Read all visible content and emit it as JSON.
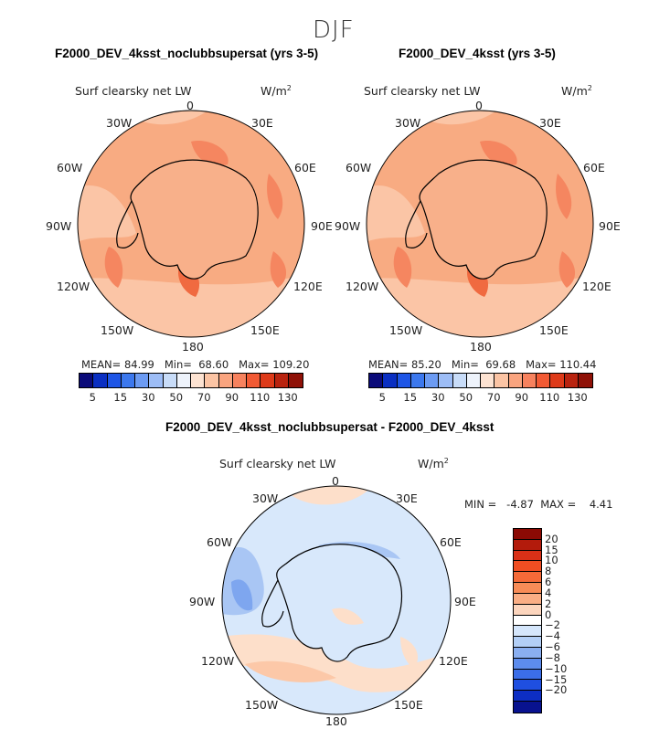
{
  "season": "DJF",
  "panels": [
    {
      "title": "F2000_DEV_4ksst_noclubbsupersat (yrs 3-5)",
      "variable": "Surf clearsky net LW",
      "units": "W/m",
      "units_exp": "2",
      "stats": {
        "mean_label": "MEAN=",
        "mean": "84.99",
        "min_label": "Min=",
        "min": "68.60",
        "max_label": "Max=",
        "max": "109.20"
      }
    },
    {
      "title": "F2000_DEV_4ksst (yrs 3-5)",
      "variable": "Surf clearsky net LW",
      "units": "W/m",
      "units_exp": "2",
      "stats": {
        "mean_label": "MEAN=",
        "mean": "85.20",
        "min_label": "Min=",
        "min": "69.68",
        "max_label": "Max=",
        "max": "110.44"
      }
    }
  ],
  "diff": {
    "title": "F2000_DEV_4ksst_noclubbsupersat - F2000_DEV_4ksst",
    "variable": "Surf clearsky net LW",
    "units": "W/m",
    "units_exp": "2",
    "minmax": "MIN =   -4.87  MAX =    4.41"
  },
  "lon_labels": {
    "top": "0",
    "ne": "30E",
    "e1": "60E",
    "e2": "90E",
    "e3": "120E",
    "se": "150E",
    "bottom": "180",
    "sw": "150W",
    "w3": "120W",
    "w2": "90W",
    "w1": "60W",
    "nw": "30W"
  },
  "colorbar_main": {
    "colors": [
      "#0b0b7a",
      "#0a2fc2",
      "#1e55e6",
      "#3c78ee",
      "#6c9bf3",
      "#9dbdf6",
      "#c8dcf8",
      "#eef3fb",
      "#fde3d2",
      "#fbc4a4",
      "#f9a47f",
      "#f7825e",
      "#f25a34",
      "#de3a19",
      "#b9230f",
      "#8f1107"
    ],
    "labels": [
      "5",
      "15",
      "30",
      "50",
      "70",
      "90",
      "110",
      "130"
    ]
  },
  "colorbar_diff": {
    "colors": [
      "#8b0a04",
      "#b31b0c",
      "#d93017",
      "#f04e22",
      "#f56a38",
      "#f88c57",
      "#faae85",
      "#fcd5bd",
      "#ffffff",
      "#d5e6fb",
      "#b3cff6",
      "#8aaff1",
      "#5d8ced",
      "#3b6ee9",
      "#1f4fe0",
      "#0d2ec4",
      "#08128f"
    ],
    "labels": [
      "20",
      "15",
      "10",
      "8",
      "6",
      "4",
      "2",
      "0",
      "−2",
      "−4",
      "−6",
      "−8",
      "−10",
      "−15",
      "−20"
    ]
  },
  "colors": {
    "map_base": "#f8ab82",
    "map_light": "#fbc5a6",
    "map_dark": "#f58660",
    "map_darker": "#f06a40",
    "diff_base": "#d8e8fb",
    "diff_warm": "#fddfca",
    "diff_cool": "#a9c6f4",
    "diff_cooler": "#7ea6ef"
  }
}
